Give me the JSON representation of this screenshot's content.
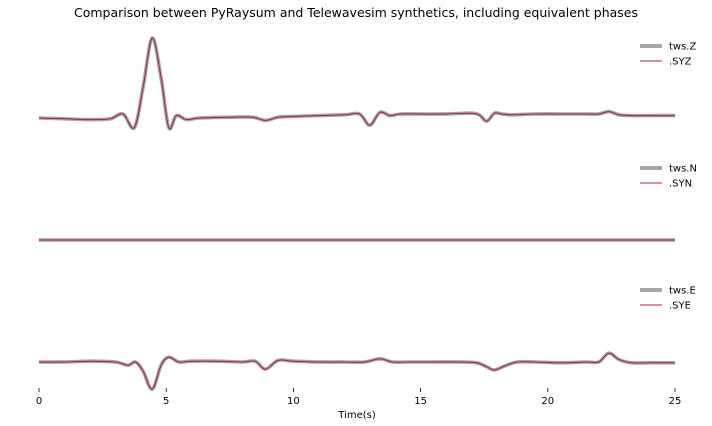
{
  "chart_data": {
    "type": "line",
    "title": "Comparison between PyRaysum and Telewavesim synthetics, including equivalent phases",
    "xlabel": "Time(s)",
    "xlim": [
      0,
      25
    ],
    "xticks": [
      0,
      5,
      10,
      15,
      20,
      25
    ],
    "grid": false,
    "legend_placement": "upper-right of each panel",
    "colors": {
      "tws": "#a6a6a6",
      "syn": "#a2234a"
    },
    "panels": [
      {
        "ylim": [
          -0.4,
          1.1
        ],
        "series": [
          {
            "name": "tws.Z",
            "style": "thick-gray"
          },
          {
            "name": ".SYZ",
            "style": "thin-red"
          }
        ],
        "t": [
          0,
          1,
          2,
          2.8,
          3.3,
          3.75,
          4.1,
          4.45,
          4.8,
          5.1,
          5.4,
          5.8,
          6.3,
          7.5,
          8.4,
          8.9,
          9.4,
          10,
          11,
          12,
          12.6,
          13.0,
          13.4,
          13.8,
          14.2,
          15,
          16,
          16.9,
          17.3,
          17.6,
          17.9,
          18.2,
          18.6,
          19.5,
          20.5,
          21.5,
          22.0,
          22.4,
          22.8,
          23.3,
          24,
          25
        ],
        "values": [
          0.0,
          -0.01,
          -0.02,
          -0.01,
          0.05,
          -0.12,
          0.4,
          1.0,
          0.5,
          -0.12,
          0.03,
          -0.02,
          0.0,
          0.01,
          0.01,
          -0.03,
          0.01,
          0.02,
          0.03,
          0.04,
          0.05,
          -0.09,
          0.07,
          0.03,
          0.05,
          0.05,
          0.05,
          0.06,
          0.04,
          -0.04,
          0.06,
          0.05,
          0.04,
          0.05,
          0.05,
          0.05,
          0.05,
          0.08,
          0.04,
          0.03,
          0.03,
          0.03
        ]
      },
      {
        "ylim": [
          -0.4,
          1.1
        ],
        "series": [
          {
            "name": "tws.N",
            "style": "thick-gray"
          },
          {
            "name": ".SYN",
            "style": "thin-red"
          }
        ],
        "t": [
          0,
          25
        ],
        "values": [
          0,
          0
        ]
      },
      {
        "ylim": [
          -0.4,
          1.1
        ],
        "series": [
          {
            "name": "tws.E",
            "style": "thick-gray"
          },
          {
            "name": ".SYE",
            "style": "thin-red"
          }
        ],
        "t": [
          0,
          1,
          2,
          3.0,
          3.5,
          3.8,
          4.1,
          4.45,
          4.8,
          5.1,
          5.5,
          6,
          7,
          8,
          8.5,
          8.9,
          9.4,
          10,
          11,
          12,
          12.8,
          13.4,
          13.9,
          14.5,
          15.5,
          16.5,
          17.2,
          17.6,
          17.9,
          18.3,
          18.8,
          19.5,
          20.5,
          21.5,
          22.0,
          22.4,
          22.8,
          23.3,
          24,
          25
        ],
        "values": [
          0.0,
          0.0,
          0.01,
          0.0,
          -0.04,
          0.0,
          -0.12,
          -0.34,
          -0.04,
          0.06,
          0.0,
          0.01,
          0.01,
          0.0,
          0.01,
          -0.09,
          0.02,
          0.01,
          0.0,
          0.0,
          0.0,
          0.04,
          0.0,
          0.0,
          0.0,
          0.0,
          -0.01,
          -0.06,
          -0.1,
          -0.05,
          0.0,
          0.0,
          -0.01,
          0.0,
          0.0,
          0.11,
          0.03,
          -0.01,
          -0.01,
          -0.01
        ]
      }
    ]
  }
}
